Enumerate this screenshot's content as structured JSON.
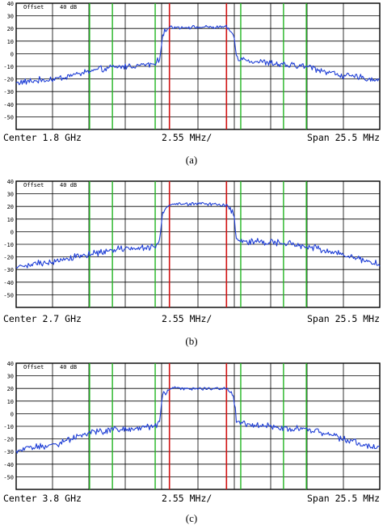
{
  "colors": {
    "trace": "#1f3fd6",
    "grid": "#000000",
    "marker_red": "#d21414",
    "marker_green": "#22b522",
    "axis_text": "#000000"
  },
  "panels": [
    {
      "caption": "(a)",
      "offset_label": "Offset",
      "offset_value": "40 dB",
      "center_label": "Center 1.8 GHz",
      "div_label": "2.55 MHz/",
      "span_label": "Span 25.5 MHz",
      "chart_data": {
        "type": "line",
        "ylim": [
          -60,
          40
        ],
        "y_ticks": [
          "40",
          "30",
          "20",
          "10",
          "0",
          "-10",
          "-20",
          "-30",
          "-40",
          "-50"
        ],
        "xlim": [
          -12.75,
          12.75
        ],
        "x_unit": "MHz",
        "red_markers": [
          -2.0,
          2.0
        ],
        "green_markers": [
          -7.6,
          -6.0,
          -3.0,
          3.0,
          6.0,
          7.6
        ],
        "series": [
          {
            "x": [
              -12.75,
              -10.0,
              -7.6,
              -6.0,
              -4.0,
              -3.0,
              -2.7,
              -2.5,
              -2.0,
              -1.0,
              0.0,
              1.0,
              2.0,
              2.5,
              2.7,
              3.0,
              4.0,
              6.0,
              7.6,
              10.0,
              12.75
            ],
            "values": [
              -23,
              -20,
              -14,
              -11,
              -9,
              -8,
              -5,
              15,
              21,
              21,
              21,
              21,
              21,
              15,
              -2,
              -4,
              -6,
              -9,
              -10,
              -17,
              -21
            ]
          }
        ]
      }
    },
    {
      "caption": "(b)",
      "offset_label": "Offset",
      "offset_value": "40 dB",
      "center_label": "Center 2.7 GHz",
      "div_label": "2.55 MHz/",
      "span_label": "Span 25.5 MHz",
      "chart_data": {
        "type": "line",
        "ylim": [
          -60,
          40
        ],
        "y_ticks": [
          "40",
          "30",
          "20",
          "10",
          "0",
          "-10",
          "-20",
          "-30",
          "-40",
          "-50"
        ],
        "xlim": [
          -12.75,
          12.75
        ],
        "x_unit": "MHz",
        "red_markers": [
          -2.0,
          2.0
        ],
        "green_markers": [
          -7.6,
          -6.0,
          -3.0,
          3.0,
          6.0,
          7.6
        ],
        "series": [
          {
            "x": [
              -12.75,
              -10.0,
              -7.6,
              -6.0,
              -4.0,
              -3.0,
              -2.7,
              -2.5,
              -2.0,
              -1.0,
              0.0,
              1.0,
              2.0,
              2.5,
              2.7,
              3.0,
              4.0,
              6.0,
              7.6,
              10.0,
              12.75
            ],
            "values": [
              -28,
              -23,
              -18,
              -14,
              -13,
              -12,
              -8,
              15,
              21,
              22,
              22,
              22,
              21,
              15,
              -5,
              -7,
              -8,
              -9,
              -11,
              -18,
              -26
            ]
          }
        ]
      }
    },
    {
      "caption": "(c)",
      "offset_label": "Offset",
      "offset_value": "40 dB",
      "center_label": "Center 3.8 GHz",
      "div_label": "2.55 MHz/",
      "span_label": "Span 25.5 MHz",
      "chart_data": {
        "type": "line",
        "ylim": [
          -60,
          40
        ],
        "y_ticks": [
          "40",
          "30",
          "20",
          "10",
          "0",
          "-10",
          "-20",
          "-30",
          "-40",
          "-50"
        ],
        "xlim": [
          -12.75,
          12.75
        ],
        "x_unit": "MHz",
        "red_markers": [
          -2.0,
          2.0
        ],
        "green_markers": [
          -7.6,
          -6.0,
          -3.0,
          3.0,
          6.0,
          7.6
        ],
        "series": [
          {
            "x": [
              -12.75,
              -10.0,
              -7.6,
              -6.0,
              -4.0,
              -3.0,
              -2.7,
              -2.5,
              -2.0,
              -1.0,
              0.0,
              1.0,
              2.0,
              2.5,
              2.7,
              3.0,
              4.0,
              6.0,
              7.6,
              10.0,
              12.75
            ],
            "values": [
              -29,
              -24,
              -15,
              -13,
              -11,
              -10,
              -7,
              14,
              20,
              20,
              20,
              20,
              20,
              14,
              -5,
              -8,
              -9,
              -11,
              -12,
              -19,
              -28
            ]
          }
        ]
      }
    }
  ]
}
